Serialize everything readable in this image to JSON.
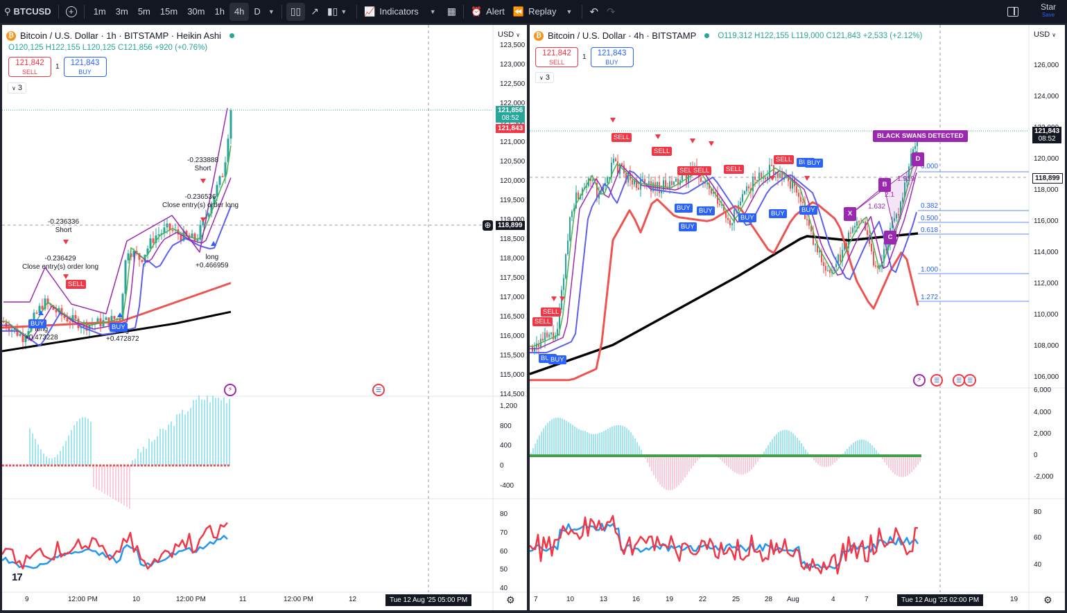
{
  "toolbar": {
    "symbol": "BTCUSD",
    "timeframes": [
      "1m",
      "3m",
      "5m",
      "15m",
      "30m",
      "1h",
      "4h",
      "D"
    ],
    "active_timeframe": "4h",
    "indicators": "Indicators",
    "alert": "Alert",
    "replay": "Replay",
    "star": "Star",
    "save": "Save"
  },
  "left": {
    "title": "Bitcoin / U.S. Dollar · 1h · BITSTAMP · Heikin Ashi",
    "ohlc": "O120,125 H122,155 L120,125 C121,856 +920 (+0.76%)",
    "sell_price": "121,842",
    "sell_label": "SELL",
    "qty": "1",
    "buy_price": "121,843",
    "buy_label": "BUY",
    "collapse": "3",
    "currency": "USD",
    "price_axis": [
      "123,500",
      "123,000",
      "122,500",
      "122,000",
      "121,500",
      "121,000",
      "120,500",
      "120,000",
      "119,500",
      "119,000",
      "118,500",
      "118,000",
      "117,500",
      "117,000",
      "116,500",
      "116,000",
      "115,500",
      "115,000",
      "114,500"
    ],
    "last_price": "121,856",
    "countdown": "08:52",
    "bid_price": "121,843",
    "cursor_price": "118,899",
    "macd_axis": [
      "1,200",
      "800",
      "400",
      "0",
      "-400"
    ],
    "rsi_axis": [
      "80",
      "70",
      "60",
      "50",
      "40"
    ],
    "time_axis": [
      "9",
      "12:00 PM",
      "10",
      "12:00 PM",
      "11",
      "12:00 PM",
      "12"
    ],
    "cursor_time": "Tue 12 Aug '25   05:00 PM",
    "annotations": [
      {
        "text": "-0.236336\nShort"
      },
      {
        "text": "-0.236429\nClose entry(s) order long"
      },
      {
        "text": "-0.233888\nShort"
      },
      {
        "text": "-0.236536\nClose entry(s) order long"
      },
      {
        "text": "long\n+0.466959"
      },
      {
        "text": "long\n+0.473228"
      },
      {
        "text": "long\n+0.472872"
      }
    ],
    "tags": [
      "SELL",
      "BUY",
      "BUY"
    ]
  },
  "right": {
    "title": "Bitcoin / U.S. Dollar · 4h · BITSTAMP",
    "ohlc": "O119,312 H122,155 L119,000 C121,843 +2,533 (+2.12%)",
    "sell_price": "121,842",
    "sell_label": "SELL",
    "qty": "1",
    "buy_price": "121,843",
    "buy_label": "BUY",
    "collapse": "3",
    "currency": "USD",
    "price_axis": [
      "126,000",
      "124,000",
      "122,000",
      "120,000",
      "118,000",
      "116,000",
      "114,000",
      "112,000",
      "110,000",
      "108,000",
      "106,000"
    ],
    "last_price": "121,843",
    "countdown": "08:52",
    "cursor_price": "118,899",
    "macd_axis": [
      "6,000",
      "4,000",
      "2,000",
      "0",
      "-2,000"
    ],
    "rsi_axis": [
      "80",
      "60",
      "40"
    ],
    "time_axis": [
      "7",
      "10",
      "13",
      "16",
      "19",
      "22",
      "25",
      "28",
      "Aug",
      "4",
      "7",
      "19"
    ],
    "cursor_time": "Tue 12 Aug '25   02:00 PM",
    "black_swan": "BLACK SWANS DETECTED",
    "fib_levels": [
      "0.000",
      "0.382",
      "0.500",
      "0.618",
      "1.000",
      "1.272"
    ],
    "fib_small": [
      "1.919",
      "1.632",
      "2.1"
    ],
    "letters": [
      "D",
      "B",
      "X",
      "C"
    ],
    "tags": [
      "SELL",
      "SELL",
      "SELL",
      "SELL",
      "SELL",
      "SELL",
      "SELL",
      "SELL",
      "BUY",
      "BUY",
      "BUY",
      "BUY",
      "BUY",
      "BUY",
      "BUY",
      "BUY",
      "BUY",
      "BUY"
    ]
  },
  "colors": {
    "up": "#26a69a",
    "down": "#ef5350",
    "ema_red": "#ef5350",
    "ema_black": "#000000",
    "ema_blue": "#5b5ff0",
    "ema_purple": "#9c27b0",
    "rsi_red": "#f23645",
    "rsi_blue": "#2196f3"
  }
}
